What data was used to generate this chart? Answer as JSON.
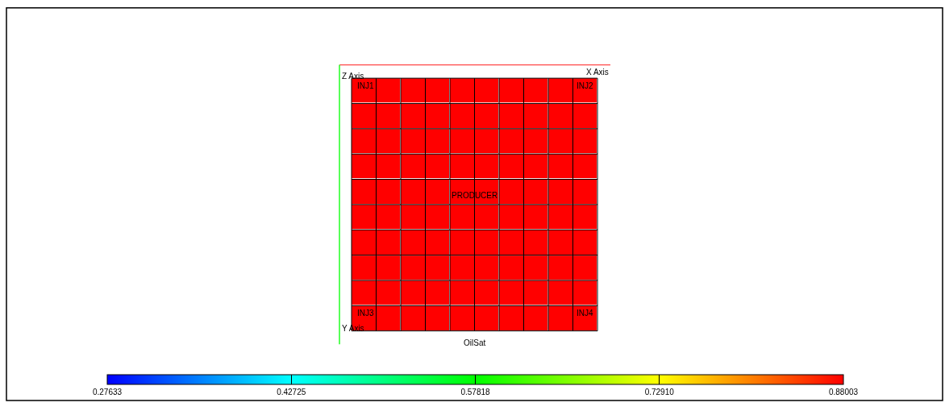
{
  "chart_data": {
    "type": "heatmap",
    "xlabel": "X Axis",
    "ylabel": "Y Axis",
    "clabel": "OilSat",
    "categories": [
      null,
      null,
      null,
      null,
      null,
      null,
      null,
      null,
      null,
      null
    ],
    "y_categories": [
      null,
      null,
      null,
      null,
      null,
      null,
      null,
      null,
      null,
      null
    ],
    "cells": [
      [
        0.88,
        0.88,
        0.88,
        0.88,
        0.88,
        0.88,
        0.88,
        0.88,
        0.88,
        0.88
      ],
      [
        0.88,
        0.88,
        0.88,
        0.88,
        0.88,
        0.88,
        0.88,
        0.88,
        0.88,
        0.88
      ],
      [
        0.88,
        0.88,
        0.88,
        0.88,
        0.88,
        0.88,
        0.88,
        0.88,
        0.88,
        0.88
      ],
      [
        0.88,
        0.88,
        0.88,
        0.88,
        0.88,
        0.88,
        0.88,
        0.88,
        0.88,
        0.88
      ],
      [
        0.88,
        0.88,
        0.88,
        0.88,
        0.88,
        0.88,
        0.88,
        0.88,
        0.88,
        0.88
      ],
      [
        0.88,
        0.88,
        0.88,
        0.88,
        0.88,
        0.88,
        0.88,
        0.88,
        0.88,
        0.88
      ],
      [
        0.88,
        0.88,
        0.88,
        0.88,
        0.88,
        0.88,
        0.88,
        0.88,
        0.88,
        0.88
      ],
      [
        0.88,
        0.88,
        0.88,
        0.88,
        0.88,
        0.88,
        0.88,
        0.88,
        0.88,
        0.88
      ],
      [
        0.88,
        0.88,
        0.88,
        0.88,
        0.88,
        0.88,
        0.88,
        0.88,
        0.88,
        0.88
      ],
      [
        0.88,
        0.88,
        0.88,
        0.88,
        0.88,
        0.88,
        0.88,
        0.88,
        0.88,
        0.88
      ]
    ],
    "clim": [
      0.27633,
      0.88003
    ],
    "cticks": [
      0.27633,
      0.42725,
      0.57818,
      {
        "value": 0.7291,
        "label": "0.72910"
      },
      0.88003
    ],
    "annotations": [
      "Z Axis",
      "INJ1",
      "INJ2",
      "INJ3",
      "INJ4",
      "PRODUCER"
    ]
  }
}
